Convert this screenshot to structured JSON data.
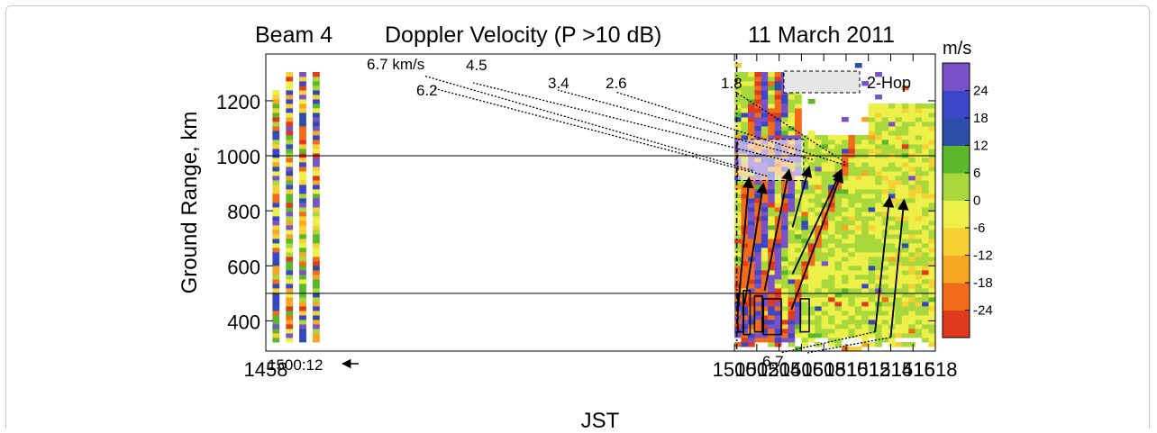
{
  "chart_data": {
    "type": "heatmap",
    "title": {
      "beam": "Beam 4",
      "quantity": "Doppler Velocity (P >10 dB)",
      "date": "11 March 2011"
    },
    "xlabel": "JST",
    "ylabel": "Ground Range, km",
    "x_ticks": [
      "1458",
      "1500",
      "1502",
      "1504",
      "1506",
      "1508",
      "1510",
      "1512",
      "1514",
      "1516",
      "1518"
    ],
    "x_tick_values": [
      1458,
      1500,
      1502,
      1504,
      1506,
      1508,
      1510,
      1512,
      1514,
      1516,
      1518
    ],
    "y_ticks": [
      "400",
      "600",
      "800",
      "1000",
      "1200"
    ],
    "y_tick_values": [
      400,
      600,
      800,
      1000,
      1200
    ],
    "xlim": [
      1458,
      1518
    ],
    "ylim": [
      290,
      1370
    ],
    "colorbar": {
      "unit": "m/s",
      "labels": [
        "24",
        "18",
        "12",
        "6",
        "0",
        "-6",
        "-12",
        "-18",
        "-24"
      ],
      "label_values": [
        24,
        18,
        12,
        6,
        0,
        -6,
        -12,
        -18,
        -24
      ],
      "colors": [
        "#e03a1e",
        "#f06c1a",
        "#f6a623",
        "#f6d134",
        "#eef04a",
        "#a8d83c",
        "#5ab82a",
        "#2d4ea8",
        "#3c46c8",
        "#7a52c8"
      ],
      "range": [
        -30,
        30
      ]
    },
    "legend": {
      "label": "2-Hop",
      "placement": "top-right"
    },
    "reference_lines_km": [
      500,
      1000
    ],
    "onset": {
      "label": "1500:12",
      "time": 1500.2
    },
    "velocity_annotations": [
      {
        "label": "6.7 km/s",
        "from": [
          1500.3,
          430
        ],
        "to": [
          1501.3,
          920
        ]
      },
      {
        "label": "6.2",
        "from": [
          1500.9,
          460
        ],
        "to": [
          1502.6,
          900
        ]
      },
      {
        "label": "4.5",
        "from": [
          1502.7,
          510
        ],
        "to": [
          1504.9,
          950
        ]
      },
      {
        "label": "3.4",
        "from": [
          1505.2,
          740
        ],
        "to": [
          1506.7,
          960
        ]
      },
      {
        "label": "2.6",
        "from": [
          1505.1,
          440
        ],
        "to": [
          1509.6,
          940
        ]
      },
      {
        "label": "1.8",
        "from": [
          1505.2,
          570
        ],
        "to": [
          1509.6,
          950
        ]
      },
      {
        "label": "6.7",
        "from": [
          1512.6,
          360
        ],
        "to": [
          1513.9,
          850
        ]
      },
      {
        "label": "",
        "from": [
          1514.0,
          340
        ],
        "to": [
          1515.2,
          840
        ]
      }
    ],
    "boxes": [
      {
        "t": [
          1500.3,
          1500.8
        ],
        "km": [
          360,
          500
        ]
      },
      {
        "t": [
          1500.8,
          1501.4
        ],
        "km": [
          350,
          510
        ]
      },
      {
        "t": [
          1501.8,
          1502.5
        ],
        "km": [
          360,
          490
        ]
      },
      {
        "t": [
          1502.6,
          1504.2
        ],
        "km": [
          350,
          480
        ]
      },
      {
        "t": [
          1505.9,
          1506.7
        ],
        "km": [
          360,
          480
        ]
      }
    ],
    "two_hop_region": {
      "t": [
        1500.3,
        1506.2
      ],
      "km": [
        910,
        1060
      ]
    }
  }
}
